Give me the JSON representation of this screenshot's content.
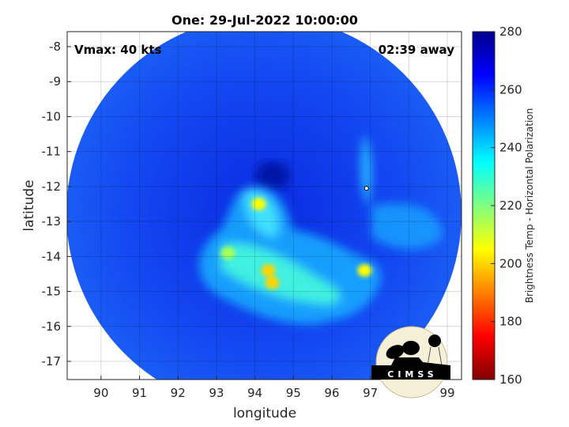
{
  "chart_data": {
    "type": "heatmap",
    "title": "One: 29-Jul-2022 10:00:00",
    "xlabel": "longitude",
    "ylabel": "latitude",
    "xlim": [
      89.12,
      99.37
    ],
    "ylim": [
      -17.52,
      -7.57
    ],
    "xticks": [
      90,
      91,
      92,
      93,
      94,
      95,
      96,
      97,
      98,
      99
    ],
    "yticks": [
      -8,
      -9,
      -10,
      -11,
      -12,
      -13,
      -14,
      -15,
      -16,
      -17
    ],
    "grid": true,
    "annotations": {
      "vmax": "Vmax: 40 kts",
      "time_away": "02:39 away"
    },
    "storm_center": {
      "lon": 96.9,
      "lat": -12.05
    },
    "colorbar": {
      "label": "Brightness Temp - Horizontal Polarization",
      "range": [
        160,
        280
      ],
      "ticks": [
        280,
        260,
        240,
        220,
        200,
        180,
        160
      ],
      "colormap": "jet"
    },
    "cold_spots": [
      {
        "lon": 94.1,
        "lat": -12.5,
        "value": 205
      },
      {
        "lon": 93.3,
        "lat": -13.9,
        "value": 215
      },
      {
        "lon": 94.35,
        "lat": -14.4,
        "value": 200
      },
      {
        "lon": 94.45,
        "lat": -14.75,
        "value": 200
      },
      {
        "lon": 96.85,
        "lat": -14.4,
        "value": 205
      }
    ]
  },
  "logo": {
    "text": "CIMSS"
  },
  "colors": {
    "warm": "#0a2ee8",
    "background_disk": "#1640f0"
  }
}
